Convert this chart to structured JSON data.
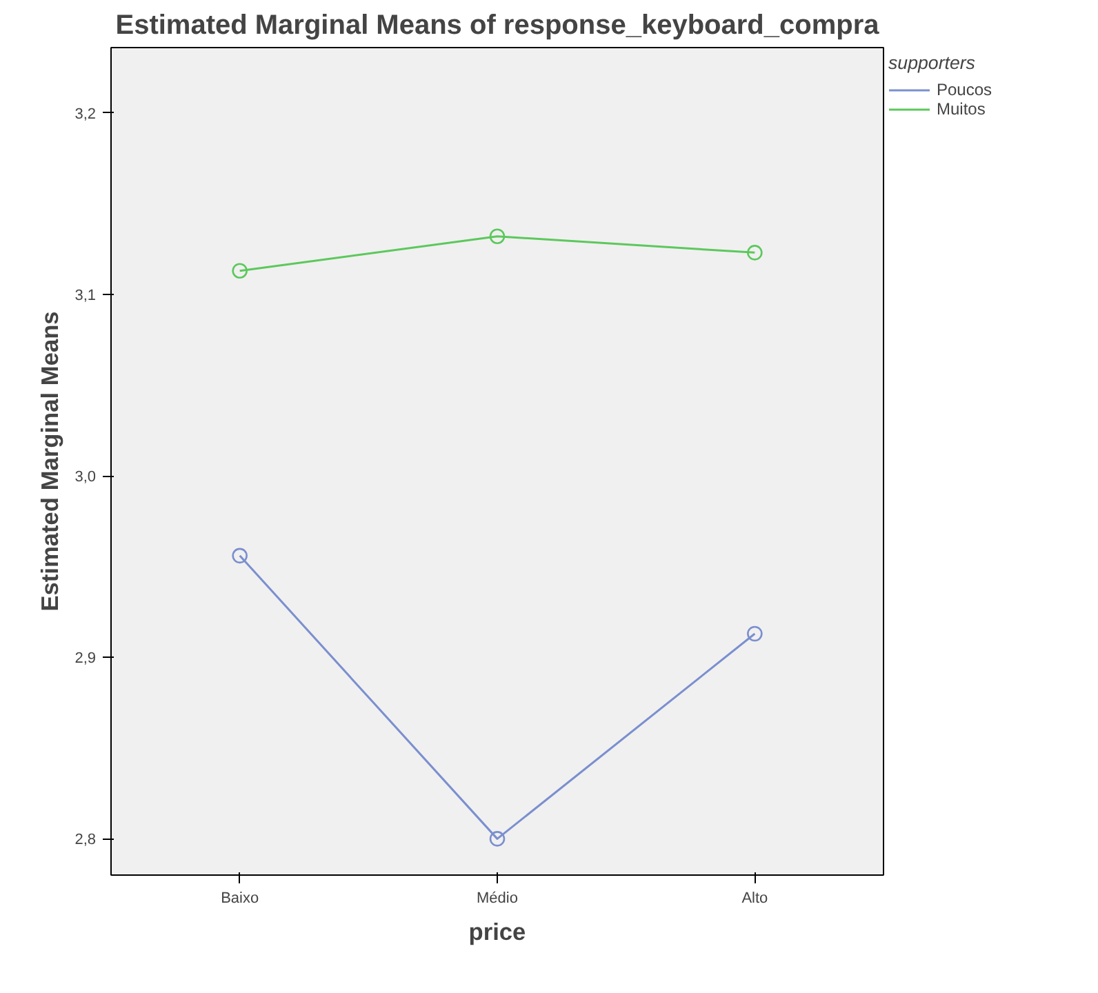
{
  "chart_data": {
    "type": "line",
    "title": "Estimated Marginal Means of response_keyboard_compra",
    "xlabel": "price",
    "ylabel": "Estimated Marginal Means",
    "legend_title": "supporters",
    "categories": [
      "Baixo",
      "Médio",
      "Alto"
    ],
    "series": [
      {
        "name": "Poucos",
        "color": "#7b8fcf",
        "values": [
          2.956,
          2.8,
          2.913
        ]
      },
      {
        "name": "Muitos",
        "color": "#5cc85c",
        "values": [
          3.113,
          3.132,
          3.123
        ]
      }
    ],
    "ylim": [
      2.78,
      3.236
    ],
    "yticks": [
      {
        "value": 2.8,
        "label": "2,8"
      },
      {
        "value": 2.9,
        "label": "2,9"
      },
      {
        "value": 3.0,
        "label": "3,0"
      },
      {
        "value": 3.1,
        "label": "3,1"
      },
      {
        "value": 3.2,
        "label": "3,2"
      }
    ],
    "marker": "circle",
    "line_style": "solid",
    "grid": false,
    "legend": "top right"
  }
}
